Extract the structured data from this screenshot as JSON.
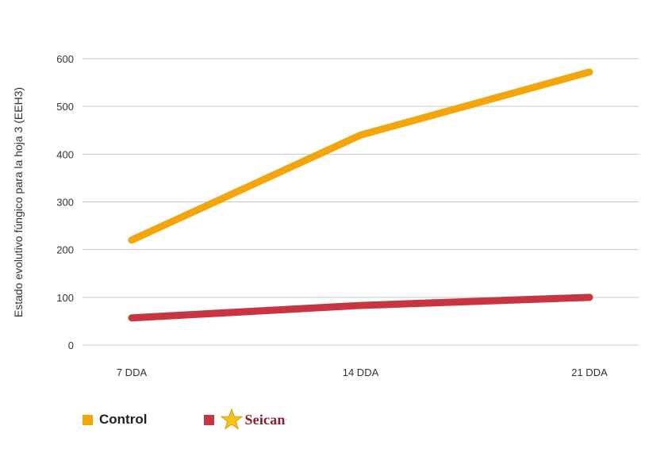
{
  "chart_data": {
    "type": "line",
    "categories": [
      "7 DDA",
      "14 DDA",
      "21 DDA"
    ],
    "series": [
      {
        "name": "Control",
        "values": [
          220,
          440,
          572
        ],
        "color": "#f2a60c"
      },
      {
        "name": "Seican",
        "values": [
          57,
          83,
          100
        ],
        "color": "#c83541"
      }
    ],
    "ylabel": "Estado evolutivo fúngico para la hoja 3 (EEH3)",
    "ylim": [
      0,
      600
    ],
    "yticks": [
      0,
      100,
      200,
      300,
      400,
      500,
      600
    ],
    "grid": true,
    "legend_position": "bottom-left"
  },
  "legend": {
    "control_label": "Control",
    "seican_label": "Seican",
    "seican_mark": "·"
  }
}
